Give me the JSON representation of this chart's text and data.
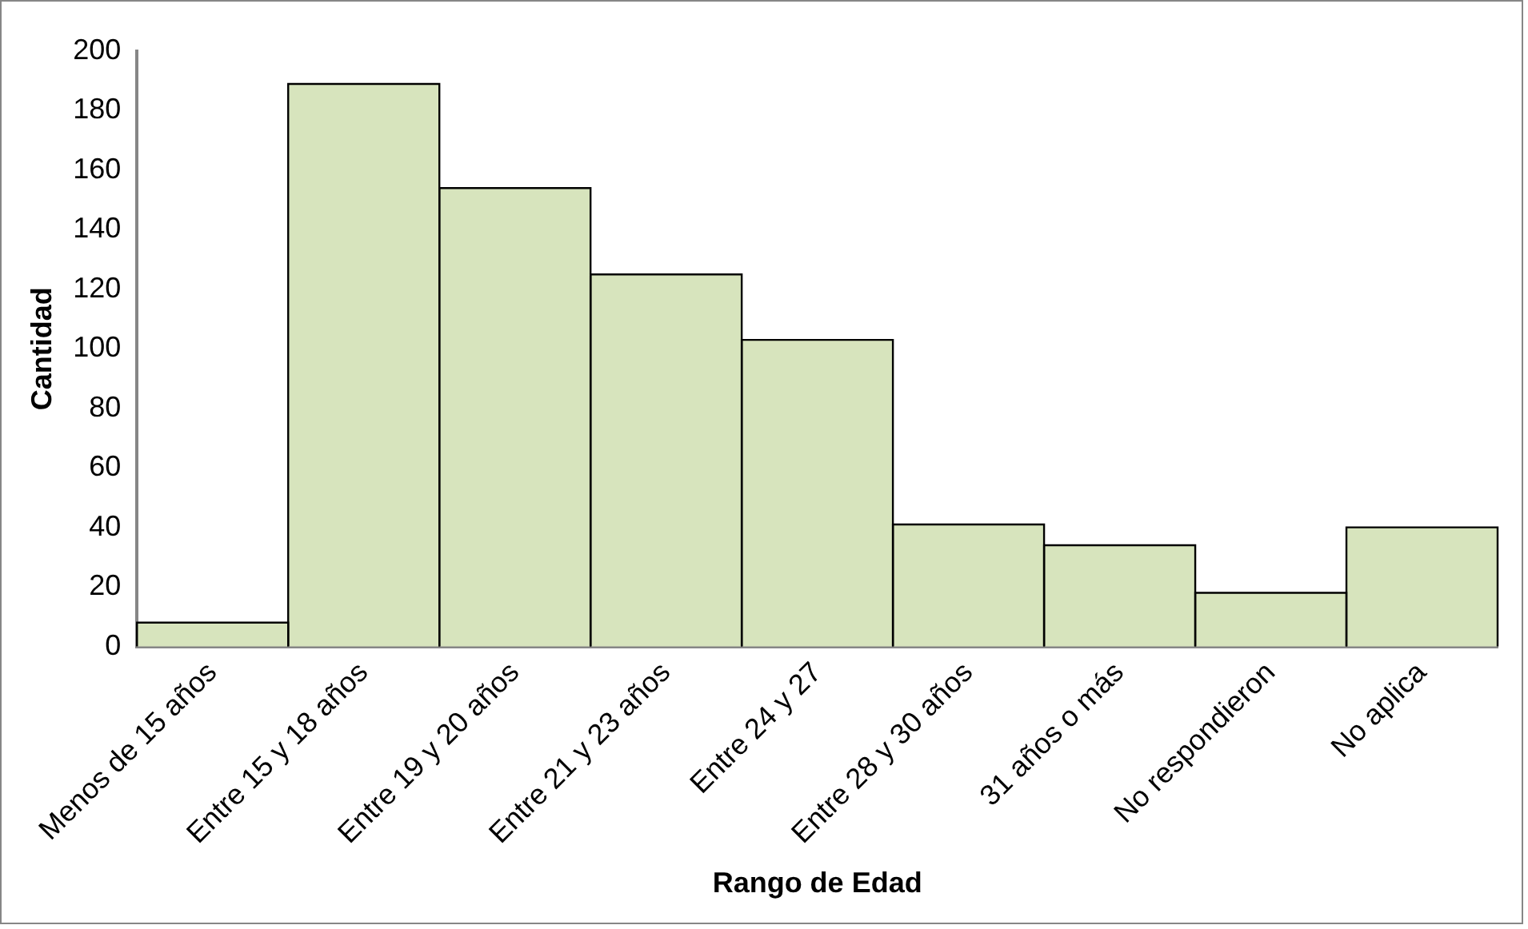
{
  "chart_data": {
    "type": "bar",
    "xlabel": "Rango de Edad",
    "ylabel": "Cantidad",
    "categories": [
      "Menos de 15 años",
      "Entre 15 y 18 años",
      "Entre 19 y 20 años",
      "Entre 21 y 23 años",
      "Entre 24 y 27",
      "Entre 28 y 30 años",
      "31 años o más",
      "No respondieron",
      "No aplica"
    ],
    "values": [
      8,
      189,
      154,
      125,
      103,
      41,
      34,
      18,
      40
    ],
    "color": "#d7e4bd",
    "ylim": [
      0,
      200
    ],
    "yticks": [
      0,
      20,
      40,
      60,
      80,
      100,
      120,
      140,
      160,
      180,
      200
    ],
    "grid": false,
    "legend": false
  }
}
